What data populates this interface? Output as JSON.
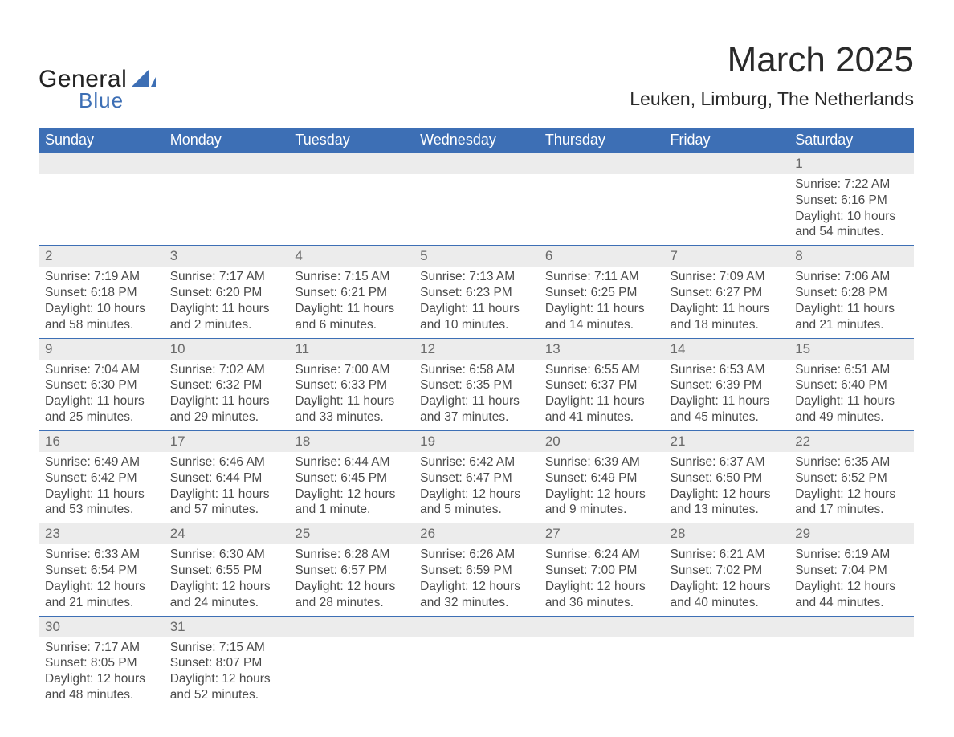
{
  "logo": {
    "text_general": "General",
    "text_blue": "Blue"
  },
  "title": "March 2025",
  "subtitle": "Leuken, Limburg, The Netherlands",
  "colors": {
    "header_bg": "#3d6fb5",
    "header_text": "#ffffff",
    "daynum_bg": "#ececec",
    "row_divider": "#3d6fb5",
    "daynum_text": "#6a6a6a",
    "detail_text": "#4a4a4a",
    "page_bg": "#ffffff",
    "title_text": "#2a2a2a"
  },
  "week_headers": [
    "Sunday",
    "Monday",
    "Tuesday",
    "Wednesday",
    "Thursday",
    "Friday",
    "Saturday"
  ],
  "weeks": [
    {
      "days": [
        {
          "num": "",
          "lines": [
            "",
            "",
            "",
            ""
          ]
        },
        {
          "num": "",
          "lines": [
            "",
            "",
            "",
            ""
          ]
        },
        {
          "num": "",
          "lines": [
            "",
            "",
            "",
            ""
          ]
        },
        {
          "num": "",
          "lines": [
            "",
            "",
            "",
            ""
          ]
        },
        {
          "num": "",
          "lines": [
            "",
            "",
            "",
            ""
          ]
        },
        {
          "num": "",
          "lines": [
            "",
            "",
            "",
            ""
          ]
        },
        {
          "num": "1",
          "lines": [
            "Sunrise: 7:22 AM",
            "Sunset: 6:16 PM",
            "Daylight: 10 hours",
            "and 54 minutes."
          ]
        }
      ]
    },
    {
      "days": [
        {
          "num": "2",
          "lines": [
            "Sunrise: 7:19 AM",
            "Sunset: 6:18 PM",
            "Daylight: 10 hours",
            "and 58 minutes."
          ]
        },
        {
          "num": "3",
          "lines": [
            "Sunrise: 7:17 AM",
            "Sunset: 6:20 PM",
            "Daylight: 11 hours",
            "and 2 minutes."
          ]
        },
        {
          "num": "4",
          "lines": [
            "Sunrise: 7:15 AM",
            "Sunset: 6:21 PM",
            "Daylight: 11 hours",
            "and 6 minutes."
          ]
        },
        {
          "num": "5",
          "lines": [
            "Sunrise: 7:13 AM",
            "Sunset: 6:23 PM",
            "Daylight: 11 hours",
            "and 10 minutes."
          ]
        },
        {
          "num": "6",
          "lines": [
            "Sunrise: 7:11 AM",
            "Sunset: 6:25 PM",
            "Daylight: 11 hours",
            "and 14 minutes."
          ]
        },
        {
          "num": "7",
          "lines": [
            "Sunrise: 7:09 AM",
            "Sunset: 6:27 PM",
            "Daylight: 11 hours",
            "and 18 minutes."
          ]
        },
        {
          "num": "8",
          "lines": [
            "Sunrise: 7:06 AM",
            "Sunset: 6:28 PM",
            "Daylight: 11 hours",
            "and 21 minutes."
          ]
        }
      ]
    },
    {
      "days": [
        {
          "num": "9",
          "lines": [
            "Sunrise: 7:04 AM",
            "Sunset: 6:30 PM",
            "Daylight: 11 hours",
            "and 25 minutes."
          ]
        },
        {
          "num": "10",
          "lines": [
            "Sunrise: 7:02 AM",
            "Sunset: 6:32 PM",
            "Daylight: 11 hours",
            "and 29 minutes."
          ]
        },
        {
          "num": "11",
          "lines": [
            "Sunrise: 7:00 AM",
            "Sunset: 6:33 PM",
            "Daylight: 11 hours",
            "and 33 minutes."
          ]
        },
        {
          "num": "12",
          "lines": [
            "Sunrise: 6:58 AM",
            "Sunset: 6:35 PM",
            "Daylight: 11 hours",
            "and 37 minutes."
          ]
        },
        {
          "num": "13",
          "lines": [
            "Sunrise: 6:55 AM",
            "Sunset: 6:37 PM",
            "Daylight: 11 hours",
            "and 41 minutes."
          ]
        },
        {
          "num": "14",
          "lines": [
            "Sunrise: 6:53 AM",
            "Sunset: 6:39 PM",
            "Daylight: 11 hours",
            "and 45 minutes."
          ]
        },
        {
          "num": "15",
          "lines": [
            "Sunrise: 6:51 AM",
            "Sunset: 6:40 PM",
            "Daylight: 11 hours",
            "and 49 minutes."
          ]
        }
      ]
    },
    {
      "days": [
        {
          "num": "16",
          "lines": [
            "Sunrise: 6:49 AM",
            "Sunset: 6:42 PM",
            "Daylight: 11 hours",
            "and 53 minutes."
          ]
        },
        {
          "num": "17",
          "lines": [
            "Sunrise: 6:46 AM",
            "Sunset: 6:44 PM",
            "Daylight: 11 hours",
            "and 57 minutes."
          ]
        },
        {
          "num": "18",
          "lines": [
            "Sunrise: 6:44 AM",
            "Sunset: 6:45 PM",
            "Daylight: 12 hours",
            "and 1 minute."
          ]
        },
        {
          "num": "19",
          "lines": [
            "Sunrise: 6:42 AM",
            "Sunset: 6:47 PM",
            "Daylight: 12 hours",
            "and 5 minutes."
          ]
        },
        {
          "num": "20",
          "lines": [
            "Sunrise: 6:39 AM",
            "Sunset: 6:49 PM",
            "Daylight: 12 hours",
            "and 9 minutes."
          ]
        },
        {
          "num": "21",
          "lines": [
            "Sunrise: 6:37 AM",
            "Sunset: 6:50 PM",
            "Daylight: 12 hours",
            "and 13 minutes."
          ]
        },
        {
          "num": "22",
          "lines": [
            "Sunrise: 6:35 AM",
            "Sunset: 6:52 PM",
            "Daylight: 12 hours",
            "and 17 minutes."
          ]
        }
      ]
    },
    {
      "days": [
        {
          "num": "23",
          "lines": [
            "Sunrise: 6:33 AM",
            "Sunset: 6:54 PM",
            "Daylight: 12 hours",
            "and 21 minutes."
          ]
        },
        {
          "num": "24",
          "lines": [
            "Sunrise: 6:30 AM",
            "Sunset: 6:55 PM",
            "Daylight: 12 hours",
            "and 24 minutes."
          ]
        },
        {
          "num": "25",
          "lines": [
            "Sunrise: 6:28 AM",
            "Sunset: 6:57 PM",
            "Daylight: 12 hours",
            "and 28 minutes."
          ]
        },
        {
          "num": "26",
          "lines": [
            "Sunrise: 6:26 AM",
            "Sunset: 6:59 PM",
            "Daylight: 12 hours",
            "and 32 minutes."
          ]
        },
        {
          "num": "27",
          "lines": [
            "Sunrise: 6:24 AM",
            "Sunset: 7:00 PM",
            "Daylight: 12 hours",
            "and 36 minutes."
          ]
        },
        {
          "num": "28",
          "lines": [
            "Sunrise: 6:21 AM",
            "Sunset: 7:02 PM",
            "Daylight: 12 hours",
            "and 40 minutes."
          ]
        },
        {
          "num": "29",
          "lines": [
            "Sunrise: 6:19 AM",
            "Sunset: 7:04 PM",
            "Daylight: 12 hours",
            "and 44 minutes."
          ]
        }
      ]
    },
    {
      "days": [
        {
          "num": "30",
          "lines": [
            "Sunrise: 7:17 AM",
            "Sunset: 8:05 PM",
            "Daylight: 12 hours",
            "and 48 minutes."
          ]
        },
        {
          "num": "31",
          "lines": [
            "Sunrise: 7:15 AM",
            "Sunset: 8:07 PM",
            "Daylight: 12 hours",
            "and 52 minutes."
          ]
        },
        {
          "num": "",
          "lines": [
            "",
            "",
            "",
            ""
          ]
        },
        {
          "num": "",
          "lines": [
            "",
            "",
            "",
            ""
          ]
        },
        {
          "num": "",
          "lines": [
            "",
            "",
            "",
            ""
          ]
        },
        {
          "num": "",
          "lines": [
            "",
            "",
            "",
            ""
          ]
        },
        {
          "num": "",
          "lines": [
            "",
            "",
            "",
            ""
          ]
        }
      ]
    }
  ]
}
